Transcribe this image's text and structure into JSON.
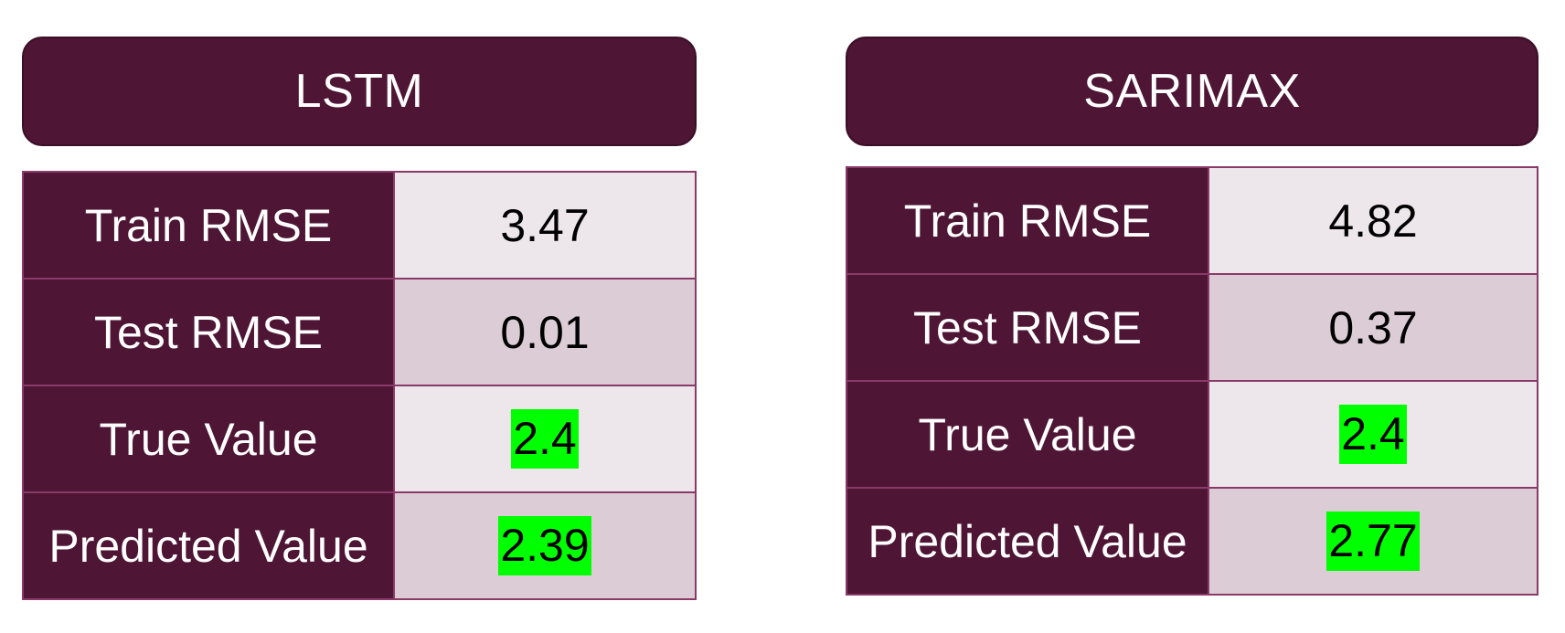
{
  "lstm": {
    "title": "LSTM",
    "rows": [
      {
        "label": "Train RMSE",
        "value": "3.47",
        "highlight": false
      },
      {
        "label": "Test RMSE",
        "value": "0.01",
        "highlight": false
      },
      {
        "label": "True Value",
        "value": "2.4",
        "highlight": true
      },
      {
        "label": "Predicted Value",
        "value": "2.39",
        "highlight": true
      }
    ]
  },
  "sarimax": {
    "title": "SARIMAX",
    "rows": [
      {
        "label": "Train RMSE",
        "value": "4.82",
        "highlight": false
      },
      {
        "label": "Test RMSE",
        "value": "0.37",
        "highlight": false
      },
      {
        "label": "True Value",
        "value": "2.4",
        "highlight": true
      },
      {
        "label": "Predicted Value",
        "value": "2.77",
        "highlight": true
      }
    ]
  },
  "colors": {
    "header_bg": "#4e1535",
    "row_light": "#ede6ea",
    "row_dark": "#dcccd5",
    "highlight": "#00ff00",
    "border": "#8a3a68"
  }
}
